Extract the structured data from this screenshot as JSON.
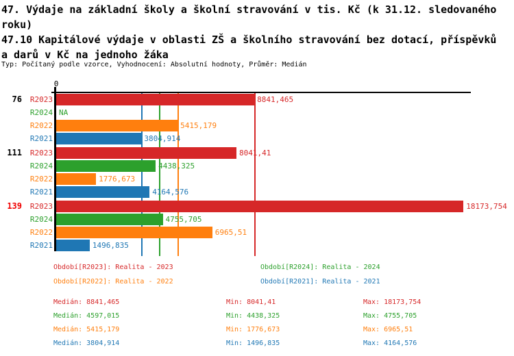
{
  "header": {
    "title1": "47. Výdaje na základní školy a školní stravování v tis. Kč (k 31.12. sledovaného\nroku)",
    "title2": "47.10 Kapitálové výdaje v oblasti ZŠ a školního stravování bez dotací, příspěvků\na darů v Kč na jednoho žáka",
    "subtitle": "Typ: Počítaný podle vzorce, Vyhodnocení: Absolutní hodnoty, Průměr: Medián"
  },
  "colors": {
    "r2023": "#d62728",
    "r2024": "#2ca02c",
    "r2022": "#ff7f0e",
    "r2021": "#1f77b4",
    "highlight_group_label": "#f00000",
    "axis": "#000000"
  },
  "chart_data": {
    "type": "bar",
    "orientation": "horizontal",
    "x_axis": {
      "zero_label": "0",
      "xmin": 0,
      "xmax": 18500,
      "grid": false
    },
    "series_order": [
      "R2023",
      "R2024",
      "R2022",
      "R2021"
    ],
    "series_colors": {
      "R2023": "#d62728",
      "R2024": "#2ca02c",
      "R2022": "#ff7f0e",
      "R2021": "#1f77b4"
    },
    "groups": [
      {
        "label": "76",
        "label_color": "#000000",
        "bars": [
          {
            "series": "R2023",
            "value": 8841.465,
            "display": "8841,465"
          },
          {
            "series": "R2024",
            "value": null,
            "display": "NA"
          },
          {
            "series": "R2022",
            "value": 5415.179,
            "display": "5415,179"
          },
          {
            "series": "R2021",
            "value": 3804.914,
            "display": "3804,914"
          }
        ]
      },
      {
        "label": "111",
        "label_color": "#000000",
        "bars": [
          {
            "series": "R2023",
            "value": 8041.41,
            "display": "8041,41"
          },
          {
            "series": "R2024",
            "value": 4438.325,
            "display": "4438,325"
          },
          {
            "series": "R2022",
            "value": 1776.673,
            "display": "1776,673"
          },
          {
            "series": "R2021",
            "value": 4164.576,
            "display": "4164,576"
          }
        ]
      },
      {
        "label": "139",
        "label_color": "#f00000",
        "bars": [
          {
            "series": "R2023",
            "value": 18173.754,
            "display": "18173,754"
          },
          {
            "series": "R2024",
            "value": 4755.705,
            "display": "4755,705"
          },
          {
            "series": "R2022",
            "value": 6965.51,
            "display": "6965,51"
          },
          {
            "series": "R2021",
            "value": 1496.835,
            "display": "1496,835"
          }
        ]
      }
    ],
    "median_lines": [
      {
        "series": "R2023",
        "value": 8841.465
      },
      {
        "series": "R2024",
        "value": 4597.015
      },
      {
        "series": "R2022",
        "value": 5415.179
      },
      {
        "series": "R2021",
        "value": 3804.914
      }
    ]
  },
  "legend": {
    "items": [
      {
        "series": "R2023",
        "label": "Období[R2023]: Realita - 2023",
        "col": 0,
        "row": 0
      },
      {
        "series": "R2024",
        "label": "Období[R2024]: Realita - 2024",
        "col": 1,
        "row": 0
      },
      {
        "series": "R2022",
        "label": "Období[R2022]: Realita - 2022",
        "col": 0,
        "row": 1
      },
      {
        "series": "R2021",
        "label": "Období[R2021]: Realita - 2021",
        "col": 1,
        "row": 1
      }
    ]
  },
  "stats": {
    "median_label": "Medián:",
    "min_label": "Min:",
    "max_label": "Max:",
    "rows": [
      {
        "series": "R2023",
        "median": "8841,465",
        "min": "8041,41",
        "max": "18173,754"
      },
      {
        "series": "R2024",
        "median": "4597,015",
        "min": "4438,325",
        "max": "4755,705"
      },
      {
        "series": "R2022",
        "median": "5415,179",
        "min": "1776,673",
        "max": "6965,51"
      },
      {
        "series": "R2021",
        "median": "3804,914",
        "min": "1496,835",
        "max": "4164,576"
      }
    ]
  }
}
